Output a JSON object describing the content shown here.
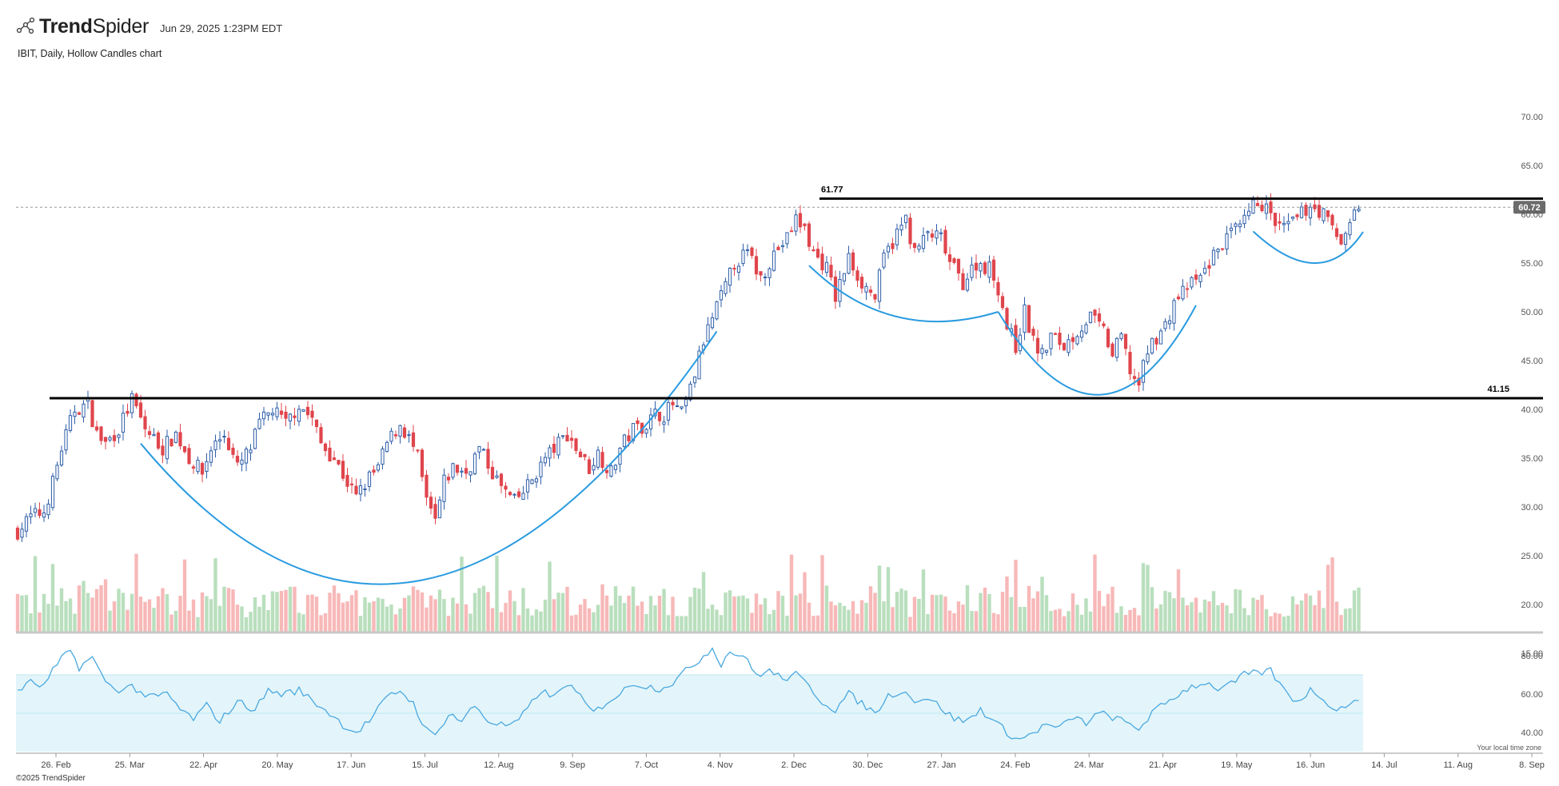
{
  "header": {
    "brand_bold": "Trend",
    "brand_light": "Spider",
    "timestamp": "Jun 29, 2025 1:23PM EDT"
  },
  "subtitle": "IBIT, Daily, Hollow Candles chart",
  "copyright": "©2025 TrendSpider",
  "colors": {
    "up": "#2e5ea8",
    "down": "#e0454c",
    "vol_up": "#b9dfbd",
    "vol_down": "#f7b8b8",
    "rsi_line": "#4aa8e0",
    "rsi_band": "#e3f5fa",
    "arc": "#2a9be0",
    "level_line": "#000000",
    "price_badge": "#6b6b6b"
  },
  "chart_data": {
    "type": "candlestick",
    "symbol": "IBIT",
    "interval": "Daily",
    "style": "Hollow Candles",
    "price_axis": {
      "ticks": [
        "70.00",
        "65.00",
        "60.00",
        "55.00",
        "50.00",
        "45.00",
        "40.00",
        "35.00",
        "30.00",
        "25.00",
        "20.00",
        "15.00"
      ],
      "range": [
        15,
        70
      ]
    },
    "rsi_axis": {
      "ticks": [
        "80.00",
        "60.00",
        "40.00"
      ],
      "range": [
        30,
        85
      ],
      "band": [
        30,
        70
      ]
    },
    "x_ticks": [
      "26. Feb",
      "25. Mar",
      "22. Apr",
      "20. May",
      "17. Jun",
      "15. Jul",
      "12. Aug",
      "9. Sep",
      "7. Oct",
      "4. Nov",
      "2. Dec",
      "30. Dec",
      "27. Jan",
      "24. Feb",
      "24. Mar",
      "21. Apr",
      "19. May",
      "16. Jun",
      "14. Jul",
      "11. Aug",
      "8. Sep"
    ],
    "current_price": "60.72",
    "levels": [
      {
        "value": 61.77,
        "label": "61.77"
      },
      {
        "value": 41.15,
        "label": "41.15"
      }
    ],
    "timezone_note": "Your local time zone",
    "close_path": [
      [
        0,
        27.5
      ],
      [
        3,
        29.0
      ],
      [
        6,
        29.5
      ],
      [
        8,
        32.5
      ],
      [
        10,
        36.0
      ],
      [
        13,
        40.0
      ],
      [
        16,
        40.5
      ],
      [
        18,
        37.5
      ],
      [
        20,
        36.5
      ],
      [
        23,
        38.0
      ],
      [
        26,
        41.0
      ],
      [
        29,
        38.0
      ],
      [
        33,
        36.0
      ],
      [
        36,
        37.5
      ],
      [
        39,
        35.0
      ],
      [
        42,
        33.5
      ],
      [
        44,
        36.0
      ],
      [
        47,
        37.5
      ],
      [
        50,
        34.0
      ],
      [
        53,
        36.0
      ],
      [
        55,
        38.5
      ],
      [
        58,
        40.0
      ],
      [
        61,
        38.5
      ],
      [
        64,
        40.5
      ],
      [
        67,
        39.0
      ],
      [
        69,
        36.5
      ],
      [
        72,
        35.0
      ],
      [
        75,
        32.5
      ],
      [
        77,
        31.0
      ],
      [
        80,
        33.0
      ],
      [
        82,
        34.0
      ],
      [
        84,
        36.5
      ],
      [
        87,
        38.5
      ],
      [
        89,
        37.0
      ],
      [
        91,
        35.0
      ],
      [
        93,
        30.5
      ],
      [
        95,
        28.5
      ],
      [
        97,
        32.5
      ],
      [
        99,
        34.0
      ],
      [
        102,
        33.5
      ],
      [
        105,
        36.0
      ],
      [
        108,
        33.5
      ],
      [
        110,
        32.0
      ],
      [
        113,
        30.5
      ],
      [
        115,
        31.5
      ],
      [
        118,
        33.5
      ],
      [
        120,
        35.0
      ],
      [
        122,
        36.0
      ],
      [
        125,
        37.5
      ],
      [
        127,
        36.0
      ],
      [
        130,
        34.0
      ],
      [
        132,
        35.5
      ],
      [
        135,
        33.5
      ],
      [
        137,
        36.0
      ],
      [
        140,
        38.0
      ],
      [
        143,
        38.5
      ],
      [
        145,
        39.5
      ],
      [
        147,
        39.5
      ],
      [
        149,
        40.5
      ],
      [
        151,
        39.5
      ],
      [
        153,
        42.0
      ],
      [
        156,
        47.0
      ],
      [
        159,
        50.5
      ],
      [
        161,
        52.5
      ],
      [
        163,
        55.0
      ],
      [
        166,
        56.0
      ],
      [
        169,
        53.5
      ],
      [
        172,
        56.0
      ],
      [
        175,
        57.5
      ],
      [
        177,
        59.5
      ],
      [
        179,
        58.5
      ],
      [
        181,
        56.0
      ],
      [
        184,
        54.5
      ],
      [
        186,
        51.5
      ],
      [
        189,
        55.5
      ],
      [
        192,
        53.0
      ],
      [
        195,
        51.5
      ],
      [
        197,
        55.5
      ],
      [
        200,
        58.0
      ],
      [
        202,
        59.5
      ],
      [
        204,
        56.0
      ],
      [
        207,
        58.0
      ],
      [
        210,
        57.5
      ],
      [
        212,
        55.0
      ],
      [
        215,
        53.0
      ],
      [
        218,
        55.0
      ],
      [
        221,
        54.5
      ],
      [
        223,
        52.5
      ],
      [
        225,
        48.5
      ],
      [
        227,
        46.5
      ],
      [
        229,
        50.0
      ],
      [
        231,
        47.0
      ],
      [
        233,
        45.5
      ],
      [
        235,
        47.5
      ],
      [
        238,
        46.5
      ],
      [
        241,
        48.0
      ],
      [
        244,
        49.5
      ],
      [
        247,
        48.0
      ],
      [
        249,
        45.5
      ],
      [
        251,
        47.5
      ],
      [
        253,
        44.0
      ],
      [
        255,
        42.5
      ],
      [
        257,
        46.0
      ],
      [
        259,
        47.5
      ],
      [
        261,
        48.5
      ],
      [
        263,
        51.0
      ],
      [
        266,
        52.5
      ],
      [
        269,
        53.5
      ],
      [
        271,
        55.0
      ],
      [
        273,
        56.5
      ],
      [
        276,
        58.0
      ],
      [
        278,
        58.5
      ],
      [
        280,
        60.0
      ],
      [
        282,
        61.5
      ],
      [
        284,
        60.5
      ],
      [
        286,
        59.0
      ],
      [
        288,
        58.5
      ],
      [
        291,
        59.5
      ],
      [
        294,
        61.0
      ],
      [
        297,
        60.0
      ],
      [
        299,
        58.5
      ],
      [
        301,
        57.0
      ],
      [
        303,
        59.5
      ],
      [
        305,
        60.7
      ]
    ],
    "rsi_path": [
      [
        0,
        62
      ],
      [
        3,
        66
      ],
      [
        6,
        64
      ],
      [
        8,
        72
      ],
      [
        10,
        78
      ],
      [
        12,
        83
      ],
      [
        14,
        74
      ],
      [
        17,
        79
      ],
      [
        19,
        70
      ],
      [
        22,
        62
      ],
      [
        26,
        64
      ],
      [
        30,
        58
      ],
      [
        34,
        60
      ],
      [
        37,
        52
      ],
      [
        40,
        47
      ],
      [
        43,
        54
      ],
      [
        46,
        46
      ],
      [
        50,
        56
      ],
      [
        54,
        52
      ],
      [
        57,
        62
      ],
      [
        60,
        60
      ],
      [
        64,
        62
      ],
      [
        68,
        55
      ],
      [
        71,
        50
      ],
      [
        74,
        44
      ],
      [
        77,
        40
      ],
      [
        80,
        46
      ],
      [
        84,
        58
      ],
      [
        87,
        62
      ],
      [
        90,
        55
      ],
      [
        93,
        41
      ],
      [
        95,
        38
      ],
      [
        98,
        50
      ],
      [
        101,
        46
      ],
      [
        104,
        54
      ],
      [
        107,
        46
      ],
      [
        110,
        44
      ],
      [
        113,
        44
      ],
      [
        116,
        52
      ],
      [
        119,
        62
      ],
      [
        122,
        58
      ],
      [
        125,
        66
      ],
      [
        128,
        58
      ],
      [
        131,
        50
      ],
      [
        134,
        56
      ],
      [
        137,
        60
      ],
      [
        140,
        66
      ],
      [
        143,
        64
      ],
      [
        146,
        63
      ],
      [
        149,
        66
      ],
      [
        152,
        72
      ],
      [
        155,
        78
      ],
      [
        158,
        84
      ],
      [
        160,
        76
      ],
      [
        162,
        82
      ],
      [
        165,
        80
      ],
      [
        168,
        70
      ],
      [
        171,
        72
      ],
      [
        174,
        68
      ],
      [
        177,
        70
      ],
      [
        180,
        64
      ],
      [
        183,
        56
      ],
      [
        186,
        52
      ],
      [
        189,
        60
      ],
      [
        192,
        55
      ],
      [
        195,
        50
      ],
      [
        198,
        59
      ],
      [
        201,
        62
      ],
      [
        204,
        57
      ],
      [
        207,
        58
      ],
      [
        210,
        53
      ],
      [
        213,
        47
      ],
      [
        216,
        46
      ],
      [
        219,
        52
      ],
      [
        222,
        46
      ],
      [
        225,
        40
      ],
      [
        228,
        36
      ],
      [
        231,
        40
      ],
      [
        234,
        44
      ],
      [
        237,
        42
      ],
      [
        240,
        48
      ],
      [
        243,
        45
      ],
      [
        246,
        50
      ],
      [
        249,
        48
      ],
      [
        252,
        45
      ],
      [
        255,
        42
      ],
      [
        258,
        50
      ],
      [
        261,
        55
      ],
      [
        264,
        60
      ],
      [
        267,
        64
      ],
      [
        270,
        66
      ],
      [
        273,
        63
      ],
      [
        276,
        65
      ],
      [
        279,
        70
      ],
      [
        282,
        71
      ],
      [
        285,
        72
      ],
      [
        288,
        62
      ],
      [
        291,
        56
      ],
      [
        294,
        62
      ],
      [
        297,
        58
      ],
      [
        300,
        51
      ],
      [
        303,
        56
      ],
      [
        305,
        55
      ]
    ],
    "patterns": [
      {
        "type": "rounded-bottom",
        "from_bar": 28,
        "to_bar": 159,
        "low_bar": 92,
        "low_price": 22.5
      },
      {
        "type": "rounded-bottom",
        "from_bar": 180,
        "to_bar": 223,
        "low_bar": 200,
        "low_price": 49.5
      },
      {
        "type": "rounded-bottom",
        "from_bar": 223,
        "to_bar": 268,
        "low_bar": 246,
        "low_price": 41.5
      },
      {
        "type": "rounded-bottom",
        "from_bar": 281,
        "to_bar": 306,
        "low_bar": 295,
        "low_price": 55.0
      }
    ]
  }
}
